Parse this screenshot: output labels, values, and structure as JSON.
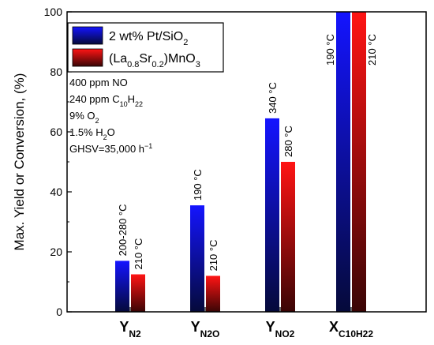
{
  "chart_data": {
    "type": "bar",
    "ylabel": "Max. Yield or Conversion, (%)",
    "ylim": [
      0,
      100
    ],
    "yticks": [
      0,
      20,
      40,
      60,
      80,
      100
    ],
    "categories": [
      {
        "main": "Y",
        "sub": "N2"
      },
      {
        "main": "Y",
        "sub": "N2O"
      },
      {
        "main": "Y",
        "sub": "NO2"
      },
      {
        "main": "X",
        "sub": "C10H22"
      }
    ],
    "series": [
      {
        "name_parts": [
          [
            "2 wt% Pt/SiO",
            ""
          ],
          [
            "2",
            "sub"
          ]
        ],
        "color": "#1414ff",
        "dark": "#050a3a",
        "values": [
          17,
          35.5,
          64.5,
          100
        ],
        "labels": [
          "200-280 °C",
          "190 °C",
          "340 °C",
          "190 °C"
        ]
      },
      {
        "name_parts": [
          [
            "(La",
            ""
          ],
          [
            "0.8",
            "sub"
          ],
          [
            "Sr",
            ""
          ],
          [
            "0.2",
            "sub"
          ],
          [
            ")MnO",
            ""
          ],
          [
            "3",
            "sub"
          ]
        ],
        "color": "#ff1414",
        "dark": "#3a0505",
        "values": [
          12.5,
          12,
          50,
          100
        ],
        "labels": [
          "210 °C",
          "210 °C",
          "280 °C",
          "210 °C"
        ]
      }
    ],
    "legend_position": "top-left",
    "annotation_lines": [
      [
        [
          "400 ppm NO",
          ""
        ]
      ],
      [
        [
          "240 ppm C",
          ""
        ],
        [
          "10",
          "sub"
        ],
        [
          "H",
          ""
        ],
        [
          "22",
          "sub"
        ]
      ],
      [
        [
          "9% O",
          ""
        ],
        [
          "2",
          "sub"
        ]
      ],
      [
        [
          "1.5% H",
          ""
        ],
        [
          "2",
          "sub"
        ],
        [
          "O",
          ""
        ]
      ],
      [
        [
          "GHSV=35,000 h",
          ""
        ],
        [
          "−1",
          "sup"
        ]
      ]
    ]
  }
}
